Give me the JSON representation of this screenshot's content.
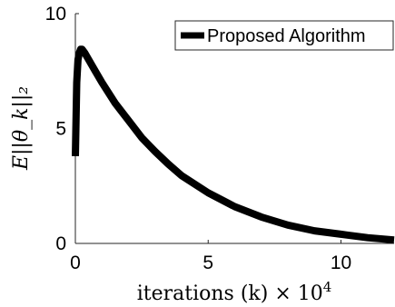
{
  "chart_data": {
    "type": "line",
    "title": "",
    "xlabel": "iterations (k) × 10",
    "xlabel_exponent": "4",
    "ylabel": "E||θ_k||₂",
    "xlim": [
      0,
      12
    ],
    "ylim": [
      0,
      10
    ],
    "x_ticks": [
      0,
      5,
      10
    ],
    "y_ticks": [
      0,
      5,
      10
    ],
    "x_tick_labels": [
      "0",
      "5",
      "10"
    ],
    "y_tick_labels": [
      "0",
      "5",
      "10"
    ],
    "grid": false,
    "legend_position": "top-right",
    "series": [
      {
        "name": "Proposed Algorithm",
        "color": "#000000",
        "x": [
          0,
          0.05,
          0.1,
          0.15,
          0.2,
          0.25,
          0.35,
          0.5,
          0.75,
          1,
          1.5,
          2,
          2.5,
          3,
          3.5,
          4,
          5,
          6,
          7,
          8,
          9,
          10,
          11,
          12
        ],
        "y": [
          3.8,
          7.0,
          8.0,
          8.3,
          8.45,
          8.45,
          8.3,
          8.0,
          7.5,
          7.0,
          6.1,
          5.35,
          4.6,
          4.0,
          3.45,
          2.95,
          2.2,
          1.6,
          1.15,
          0.8,
          0.55,
          0.4,
          0.25,
          0.15
        ]
      }
    ]
  }
}
